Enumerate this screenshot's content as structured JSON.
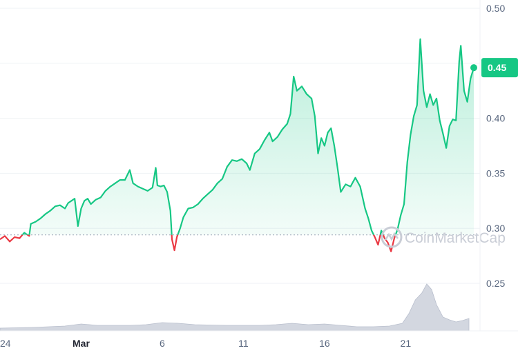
{
  "chart_data": {
    "type": "line",
    "y_ticks": [
      "0.50",
      "0.45",
      "0.40",
      "0.35",
      "0.30",
      "0.25"
    ],
    "y_tick_values": [
      0.5,
      0.45,
      0.4,
      0.35,
      0.3,
      0.25
    ],
    "ylim": [
      0.21,
      0.51
    ],
    "x_ticks": [
      {
        "label": "24",
        "day": 24,
        "bold": false
      },
      {
        "label": "Mar",
        "day": 29,
        "bold": true
      },
      {
        "label": "6",
        "day": 34,
        "bold": false
      },
      {
        "label": "11",
        "day": 39,
        "bold": false
      },
      {
        "label": "16",
        "day": 44,
        "bold": false
      },
      {
        "label": "21",
        "day": 49,
        "bold": false
      }
    ],
    "baseline": 0.294,
    "current_price": "0.45",
    "current_value": 0.446,
    "colors": {
      "up": "#16c784",
      "down": "#ea3943",
      "volume": "#c4c9d6",
      "badge": "#16c784"
    },
    "price_series": [
      [
        24.0,
        0.29
      ],
      [
        24.3,
        0.293
      ],
      [
        24.6,
        0.288
      ],
      [
        24.9,
        0.292
      ],
      [
        25.2,
        0.291
      ],
      [
        25.5,
        0.296
      ],
      [
        25.8,
        0.293
      ],
      [
        25.9,
        0.304
      ],
      [
        26.2,
        0.306
      ],
      [
        26.5,
        0.309
      ],
      [
        26.8,
        0.313
      ],
      [
        27.1,
        0.316
      ],
      [
        27.4,
        0.32
      ],
      [
        27.7,
        0.321
      ],
      [
        28.0,
        0.318
      ],
      [
        28.2,
        0.323
      ],
      [
        28.4,
        0.325
      ],
      [
        28.6,
        0.327
      ],
      [
        28.8,
        0.302
      ],
      [
        29.0,
        0.318
      ],
      [
        29.2,
        0.325
      ],
      [
        29.4,
        0.327
      ],
      [
        29.6,
        0.322
      ],
      [
        29.9,
        0.326
      ],
      [
        30.2,
        0.328
      ],
      [
        30.5,
        0.334
      ],
      [
        30.8,
        0.338
      ],
      [
        31.1,
        0.341
      ],
      [
        31.4,
        0.344
      ],
      [
        31.7,
        0.344
      ],
      [
        32.0,
        0.353
      ],
      [
        32.2,
        0.341
      ],
      [
        32.5,
        0.338
      ],
      [
        32.8,
        0.336
      ],
      [
        33.1,
        0.334
      ],
      [
        33.4,
        0.337
      ],
      [
        33.6,
        0.355
      ],
      [
        33.7,
        0.339
      ],
      [
        33.9,
        0.338
      ],
      [
        34.1,
        0.339
      ],
      [
        34.3,
        0.333
      ],
      [
        34.5,
        0.316
      ],
      [
        34.6,
        0.29
      ],
      [
        34.75,
        0.28
      ],
      [
        34.9,
        0.292
      ],
      [
        35.1,
        0.3
      ],
      [
        35.3,
        0.31
      ],
      [
        35.6,
        0.318
      ],
      [
        35.9,
        0.319
      ],
      [
        36.2,
        0.322
      ],
      [
        36.5,
        0.327
      ],
      [
        36.8,
        0.331
      ],
      [
        37.1,
        0.335
      ],
      [
        37.4,
        0.341
      ],
      [
        37.7,
        0.345
      ],
      [
        38.0,
        0.356
      ],
      [
        38.3,
        0.362
      ],
      [
        38.6,
        0.361
      ],
      [
        38.9,
        0.363
      ],
      [
        39.2,
        0.359
      ],
      [
        39.4,
        0.353
      ],
      [
        39.7,
        0.368
      ],
      [
        40.0,
        0.372
      ],
      [
        40.3,
        0.38
      ],
      [
        40.6,
        0.387
      ],
      [
        40.8,
        0.379
      ],
      [
        41.1,
        0.383
      ],
      [
        41.4,
        0.39
      ],
      [
        41.7,
        0.395
      ],
      [
        41.9,
        0.404
      ],
      [
        42.1,
        0.438
      ],
      [
        42.3,
        0.425
      ],
      [
        42.6,
        0.429
      ],
      [
        42.9,
        0.422
      ],
      [
        43.2,
        0.418
      ],
      [
        43.4,
        0.402
      ],
      [
        43.6,
        0.368
      ],
      [
        43.8,
        0.382
      ],
      [
        44.0,
        0.375
      ],
      [
        44.2,
        0.387
      ],
      [
        44.4,
        0.391
      ],
      [
        44.6,
        0.375
      ],
      [
        44.8,
        0.355
      ],
      [
        45.0,
        0.333
      ],
      [
        45.3,
        0.34
      ],
      [
        45.6,
        0.338
      ],
      [
        45.9,
        0.346
      ],
      [
        46.2,
        0.338
      ],
      [
        46.5,
        0.318
      ],
      [
        46.7,
        0.309
      ],
      [
        46.9,
        0.298
      ],
      [
        47.1,
        0.292
      ],
      [
        47.3,
        0.285
      ],
      [
        47.5,
        0.298
      ],
      [
        47.7,
        0.291
      ],
      [
        47.9,
        0.287
      ],
      [
        48.1,
        0.279
      ],
      [
        48.3,
        0.291
      ],
      [
        48.5,
        0.299
      ],
      [
        48.7,
        0.312
      ],
      [
        48.9,
        0.322
      ],
      [
        49.1,
        0.36
      ],
      [
        49.3,
        0.385
      ],
      [
        49.5,
        0.402
      ],
      [
        49.7,
        0.412
      ],
      [
        49.9,
        0.472
      ],
      [
        50.1,
        0.425
      ],
      [
        50.3,
        0.41
      ],
      [
        50.5,
        0.422
      ],
      [
        50.7,
        0.412
      ],
      [
        50.9,
        0.418
      ],
      [
        51.1,
        0.398
      ],
      [
        51.3,
        0.386
      ],
      [
        51.5,
        0.373
      ],
      [
        51.7,
        0.393
      ],
      [
        51.9,
        0.399
      ],
      [
        52.1,
        0.398
      ],
      [
        52.3,
        0.452
      ],
      [
        52.4,
        0.466
      ],
      [
        52.6,
        0.425
      ],
      [
        52.8,
        0.415
      ],
      [
        53.0,
        0.436
      ],
      [
        53.2,
        0.446
      ]
    ],
    "volume_series": [
      [
        24,
        0.004
      ],
      [
        26,
        0.005
      ],
      [
        28,
        0.007
      ],
      [
        29,
        0.01
      ],
      [
        30,
        0.008
      ],
      [
        32,
        0.008
      ],
      [
        33,
        0.009
      ],
      [
        34,
        0.012
      ],
      [
        35,
        0.011
      ],
      [
        36,
        0.009
      ],
      [
        38,
        0.008
      ],
      [
        40,
        0.008
      ],
      [
        41,
        0.009
      ],
      [
        42,
        0.011
      ],
      [
        43,
        0.009
      ],
      [
        44,
        0.01
      ],
      [
        45,
        0.008
      ],
      [
        46,
        0.006
      ],
      [
        47,
        0.006
      ],
      [
        48,
        0.007
      ],
      [
        48.8,
        0.011
      ],
      [
        49.2,
        0.025
      ],
      [
        49.6,
        0.045
      ],
      [
        50.0,
        0.055
      ],
      [
        50.3,
        0.068
      ],
      [
        50.6,
        0.06
      ],
      [
        50.9,
        0.038
      ],
      [
        51.3,
        0.02
      ],
      [
        51.7,
        0.016
      ],
      [
        52.1,
        0.013
      ],
      [
        52.5,
        0.015
      ],
      [
        52.9,
        0.018
      ]
    ],
    "volume_floor": 0.003
  },
  "watermark": {
    "text": "CoinMarketCap"
  }
}
